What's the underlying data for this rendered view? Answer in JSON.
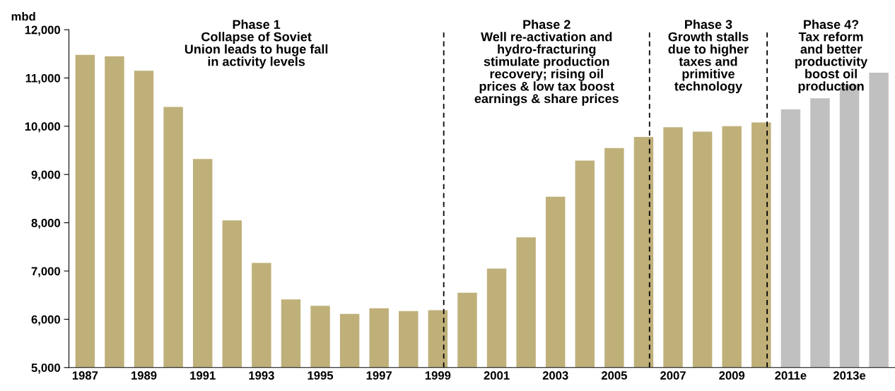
{
  "chart_data": {
    "type": "bar",
    "ylabel": "mbd",
    "categories": [
      "1987",
      null,
      "1989",
      null,
      "1991",
      null,
      "1993",
      null,
      "1995",
      null,
      "1997",
      null,
      "1999",
      null,
      "2001",
      null,
      "2003",
      null,
      "2005",
      null,
      "2007",
      null,
      "2009",
      null,
      "2011e",
      null,
      "2013e",
      null
    ],
    "values": [
      11480,
      11450,
      11150,
      10400,
      9320,
      8050,
      7170,
      6410,
      6280,
      6110,
      6230,
      6170,
      6190,
      6550,
      7050,
      7700,
      8540,
      9290,
      9550,
      9780,
      9980,
      9890,
      10000,
      10080,
      10350,
      10580,
      10860,
      11110
    ],
    "colors": [
      "#bfb07a",
      "#bfb07a",
      "#bfb07a",
      "#bfb07a",
      "#bfb07a",
      "#bfb07a",
      "#bfb07a",
      "#bfb07a",
      "#bfb07a",
      "#bfb07a",
      "#bfb07a",
      "#bfb07a",
      "#bfb07a",
      "#bfb07a",
      "#bfb07a",
      "#bfb07a",
      "#bfb07a",
      "#bfb07a",
      "#bfb07a",
      "#bfb07a",
      "#bfb07a",
      "#bfb07a",
      "#bfb07a",
      "#bfb07a",
      "#c0c0c0",
      "#c0c0c0",
      "#c0c0c0",
      "#c0c0c0"
    ],
    "ylim": [
      5000,
      12000
    ],
    "yticks": [
      {
        "value": 5000,
        "label": "5,000"
      },
      {
        "value": 6000,
        "label": "6,000"
      },
      {
        "value": 7000,
        "label": "7,000"
      },
      {
        "value": 8000,
        "label": "8,000"
      },
      {
        "value": 9000,
        "label": "9,000"
      },
      {
        "value": 10000,
        "label": "10,000"
      },
      {
        "value": 11000,
        "label": "11,000"
      },
      {
        "value": 12000,
        "label": "12,000"
      }
    ],
    "ref_lines": [
      {
        "axis": "x",
        "value": "1999",
        "line_style": "dashed",
        "color": "#000000"
      }
    ],
    "annotations": [
      "Phase 1\nCollapse of Soviet\nUnion leads to huge fall\nin activity levels",
      "Phase 2\nWell re-activation and\nhydro-fracturing\nstimulate production\nrecovery; rising oil\nprices & low tax boost\nearnings & share prices",
      "Phase 3\nGrowth stalls\ndue to higher\ntaxes and\nprimitive\ntechnology",
      "Phase 4?\nTax reform\nand better\nproductivity\nboost oil\nproduction"
    ],
    "grid": false,
    "legend": false
  }
}
